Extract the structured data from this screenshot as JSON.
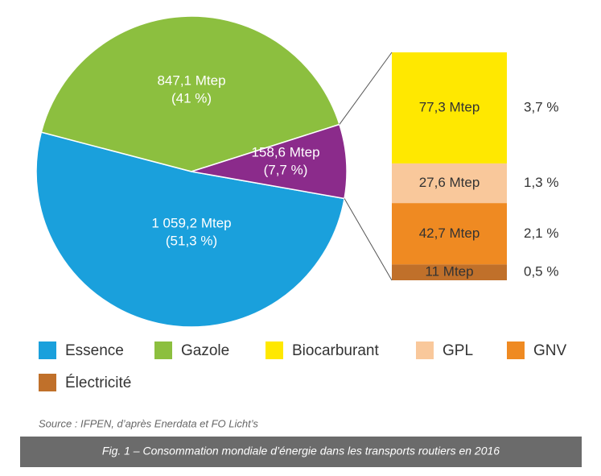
{
  "chart_data": {
    "type": "pie-of-bar",
    "pie": {
      "categories": [
        "Essence",
        "Gazole",
        null
      ],
      "values": [
        1059.2,
        847.1,
        158.6
      ],
      "value_labels": [
        "1 059,2 Mtep",
        "847,1 Mtep",
        "158,6 Mtep"
      ],
      "percent_labels": [
        "(51,3 %)",
        "(41 %)",
        "(7,7 %)"
      ],
      "colors": [
        "#1aa0dc",
        "#8cbf3f",
        "#8b2b8b"
      ]
    },
    "bar": {
      "categories": [
        "Biocarburant",
        "GPL",
        "GNV",
        "Électricité"
      ],
      "values": [
        77.3,
        27.6,
        42.7,
        11
      ],
      "value_labels": [
        "77,3 Mtep",
        "27,6 Mtep",
        "42,7 Mtep",
        "11 Mtep"
      ],
      "percent_labels": [
        "3,7 %",
        "1,3 %",
        "2,1 %",
        "0,5 %"
      ],
      "colors": [
        "#ffe800",
        "#f9c89b",
        "#ef8a22",
        "#c0702a"
      ]
    },
    "source": "Source : IFPEN, d’après Enerdata et FO Licht’s",
    "caption": "Fig. 1 – Consommation mondiale d’énergie dans les transports routiers en 2016"
  }
}
